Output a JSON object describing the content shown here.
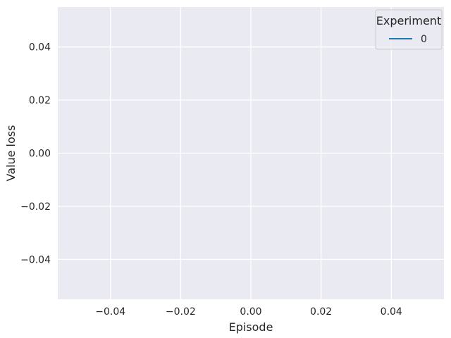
{
  "chart_data": {
    "type": "line",
    "title": "",
    "xlabel": "Episode",
    "ylabel": "Value loss",
    "xlim": [
      -0.055,
      0.055
    ],
    "ylim": [
      -0.055,
      0.055
    ],
    "x_ticks": [
      -0.04,
      -0.02,
      0.0,
      0.02,
      0.04
    ],
    "x_tick_labels": [
      "−0.04",
      "−0.02",
      "0.00",
      "0.02",
      "0.04"
    ],
    "y_ticks": [
      -0.04,
      -0.02,
      0.0,
      0.02,
      0.04
    ],
    "y_tick_labels": [
      "−0.04",
      "−0.02",
      "0.00",
      "0.02",
      "0.04"
    ],
    "grid": true,
    "legend": {
      "title": "Experiment",
      "placement": "top-right",
      "entries": [
        {
          "label": "0",
          "color": "#1f77b4"
        }
      ]
    },
    "series": [
      {
        "name": "0",
        "color": "#1f77b4",
        "x": [],
        "y": []
      }
    ],
    "colors": {
      "plot_background": "#eaeaf2",
      "grid": "#ffffff",
      "text": "#262626"
    }
  }
}
